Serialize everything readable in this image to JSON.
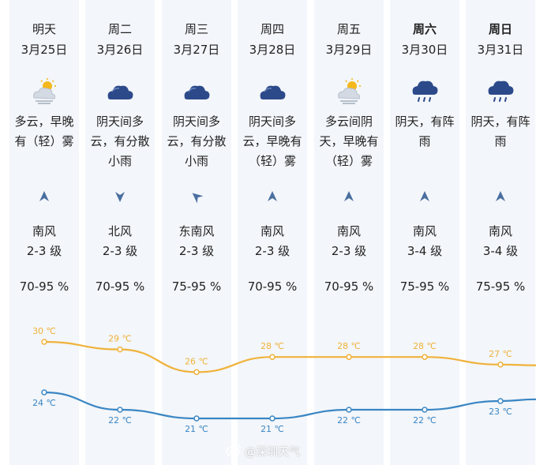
{
  "days": [
    {
      "day": "明天",
      "date": "3月25日",
      "bold": false,
      "icon": "partly-cloudy-fog-icon",
      "desc": [
        "多云，早晚",
        "有（轻）雾"
      ],
      "wind_dir": "南风",
      "wind_arrow": "north",
      "wind_level": "2-3 级",
      "humidity": "70-95 %"
    },
    {
      "day": "周二",
      "date": "3月26日",
      "bold": false,
      "icon": "cloudy-icon",
      "desc": [
        "阴天间多",
        "云，有分散",
        "小雨"
      ],
      "wind_dir": "北风",
      "wind_arrow": "south",
      "wind_level": "2-3 级",
      "humidity": "70-95 %"
    },
    {
      "day": "周三",
      "date": "3月27日",
      "bold": false,
      "icon": "cloudy-icon",
      "desc": [
        "阴天间多",
        "云，有分散",
        "小雨"
      ],
      "wind_dir": "东南风",
      "wind_arrow": "northwest",
      "wind_level": "2-3 级",
      "humidity": "75-95 %"
    },
    {
      "day": "周四",
      "date": "3月28日",
      "bold": false,
      "icon": "cloudy-icon",
      "desc": [
        "阴天间多",
        "云，早晚有",
        "（轻）雾"
      ],
      "wind_dir": "南风",
      "wind_arrow": "north",
      "wind_level": "2-3 级",
      "humidity": "70-95 %"
    },
    {
      "day": "周五",
      "date": "3月29日",
      "bold": false,
      "icon": "partly-cloudy-fog-icon",
      "desc": [
        "多云间阴",
        "天，早晚有",
        "（轻）雾"
      ],
      "wind_dir": "南风",
      "wind_arrow": "north",
      "wind_level": "2-3 级",
      "humidity": "70-95 %"
    },
    {
      "day": "周六",
      "date": "3月30日",
      "bold": true,
      "icon": "rain-cloud-icon",
      "desc": [
        "阴天，有阵",
        "雨"
      ],
      "wind_dir": "南风",
      "wind_arrow": "north",
      "wind_level": "3-4 级",
      "humidity": "75-95 %"
    },
    {
      "day": "周日",
      "date": "3月31日",
      "bold": true,
      "icon": "rain-cloud-icon",
      "desc": [
        "阴天，有阵",
        "雨"
      ],
      "wind_dir": "南风",
      "wind_arrow": "north",
      "wind_level": "3-4 级",
      "humidity": "75-95 %"
    }
  ],
  "temps": {
    "high": [
      "30 ℃",
      "29 ℃",
      "26 ℃",
      "28 ℃",
      "28 ℃",
      "28 ℃",
      "27 ℃"
    ],
    "low": [
      "24 ℃",
      "22 ℃",
      "21 ℃",
      "21 ℃",
      "22 ℃",
      "22 ℃",
      "23 ℃"
    ],
    "high_values": [
      30,
      29,
      26,
      28,
      28,
      28,
      27
    ],
    "low_values": [
      24,
      22,
      21,
      21,
      22,
      22,
      23
    ]
  },
  "colors": {
    "high_line": "#f0b23a",
    "low_line": "#3a86c4",
    "column_bg": "#f3f6fa",
    "cloud": "#2c4a8a",
    "sun": "#f5b81c"
  },
  "watermark": {
    "text": "@深圳天气",
    "icon": "weibo-icon"
  }
}
